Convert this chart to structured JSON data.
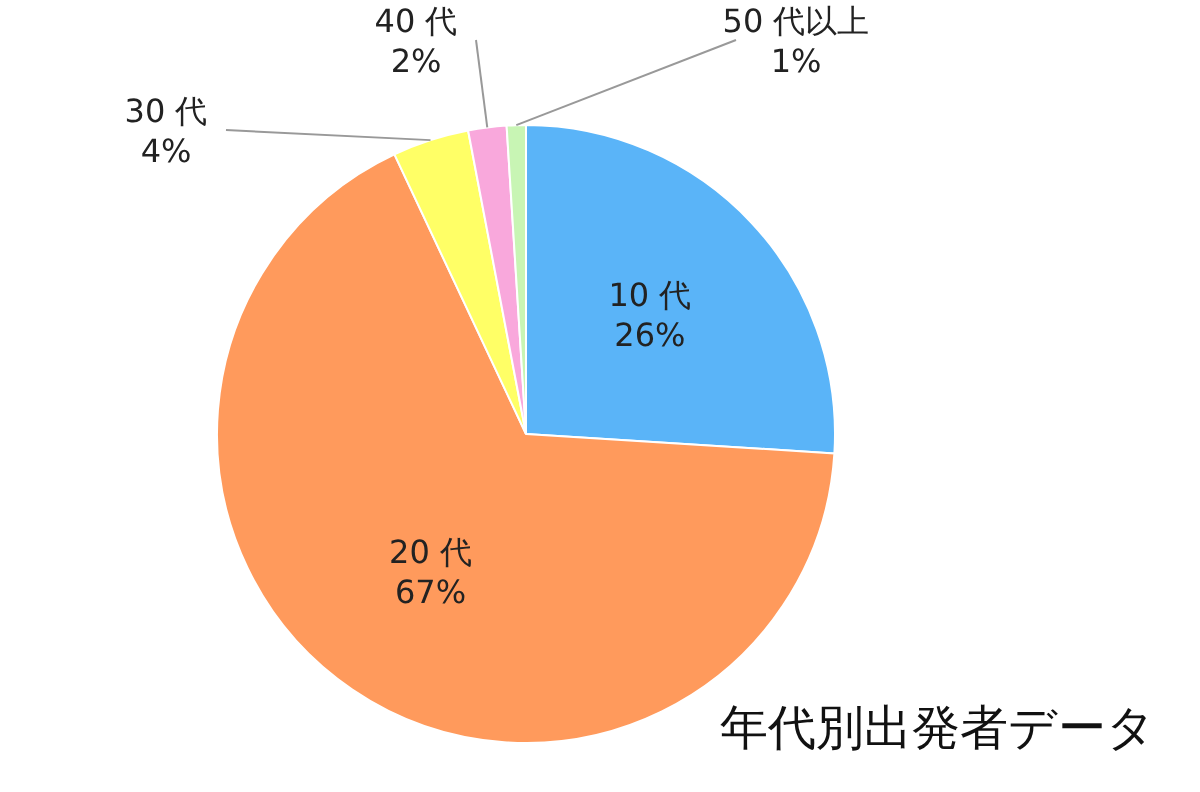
{
  "chart_data": {
    "type": "pie",
    "title": "年代別出発者データ",
    "categories": [
      "10 代",
      "20 代",
      "30 代",
      "40 代",
      "50 代以上"
    ],
    "values": [
      26,
      67,
      4,
      2,
      1
    ],
    "colors": [
      "#5ab4f8",
      "#ff9a5c",
      "#ffff66",
      "#f9a8dc",
      "#c8f5b4"
    ],
    "value_labels": [
      "26%",
      "67%",
      "4%",
      "2%",
      "1%"
    ],
    "legend": false
  }
}
